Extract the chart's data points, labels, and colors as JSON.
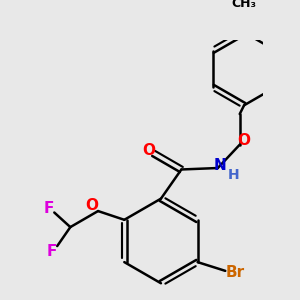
{
  "bg_color": "#e8e8e8",
  "bond_color": "#000000",
  "bond_width": 1.8,
  "atom_colors": {
    "O": "#ff0000",
    "N": "#0000cc",
    "F": "#dd00dd",
    "Br": "#cc6600",
    "C": "#000000",
    "H": "#4466cc"
  },
  "font_size": 10,
  "fig_size": [
    3.0,
    3.0
  ],
  "dpi": 100
}
